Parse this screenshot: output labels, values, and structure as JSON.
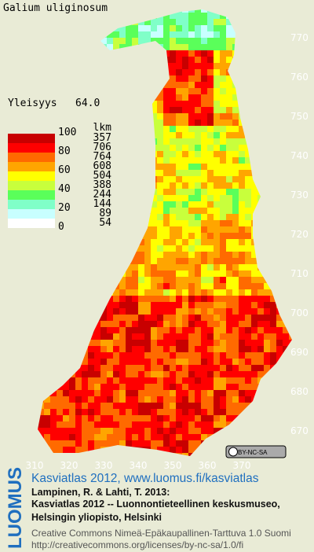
{
  "title": "Galium uliginosum",
  "frequency": {
    "label": "Yleisyys",
    "value": "64.0"
  },
  "legend": {
    "scale": [
      "100",
      "80",
      "60",
      "40",
      "20",
      "0"
    ],
    "count_header": "lkm",
    "counts": [
      "357",
      "706",
      "764",
      "608",
      "504",
      "388",
      "244",
      "144",
      "89",
      "54"
    ]
  },
  "y_axis_labels": [
    "770",
    "760",
    "750",
    "740",
    "730",
    "720",
    "710",
    "700",
    "690",
    "680",
    "670"
  ],
  "x_axis_labels": [
    "310",
    "320",
    "330",
    "340",
    "350",
    "360",
    "370"
  ],
  "license_badge": "BY-NC-SA",
  "footer": {
    "brand": "LUOMUS",
    "link": "Kasviatlas 2012, www.luomus.fi/kasviatlas",
    "citation": [
      "Lampinen, R. & Lahti, T. 2013:",
      "Kasviatlas 2012 -- Luonnontieteellinen keskusmuseo,",
      "Helsingin yliopisto, Helsinki"
    ],
    "license": [
      "Creative Commons Nimeä-Epäkaupallinen-Tarttuva 1.0 Suomi",
      "http://creativecommons.org/licenses/by-nc-sa/1.0/fi"
    ]
  }
}
